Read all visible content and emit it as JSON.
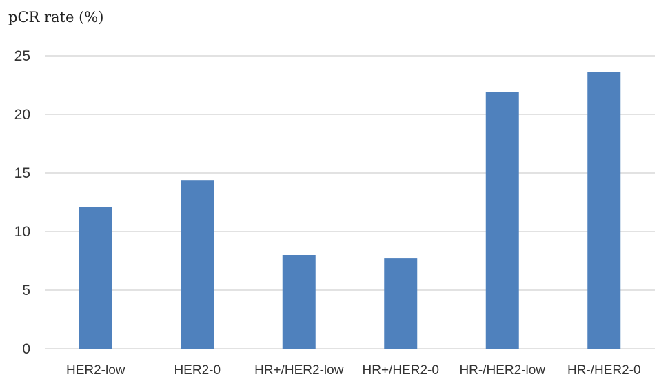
{
  "chart_data": {
    "type": "bar",
    "title": "",
    "xlabel": "",
    "ylabel": "pCR rate (%)",
    "categories": [
      "HER2-low",
      "HER2-0",
      "HR+/HER2-low",
      "HR+/HER2-0",
      "HR-/HER2-low",
      "HR-/HER2-0"
    ],
    "values": [
      12.1,
      14.4,
      8.0,
      7.7,
      21.9,
      23.6
    ],
    "ylim": [
      0,
      25
    ],
    "yticks": [
      0,
      5,
      10,
      15,
      20,
      25
    ],
    "grid": true,
    "legend": "none",
    "bar_color": "#4f81bd",
    "grid_color": "#d9d9d9"
  }
}
